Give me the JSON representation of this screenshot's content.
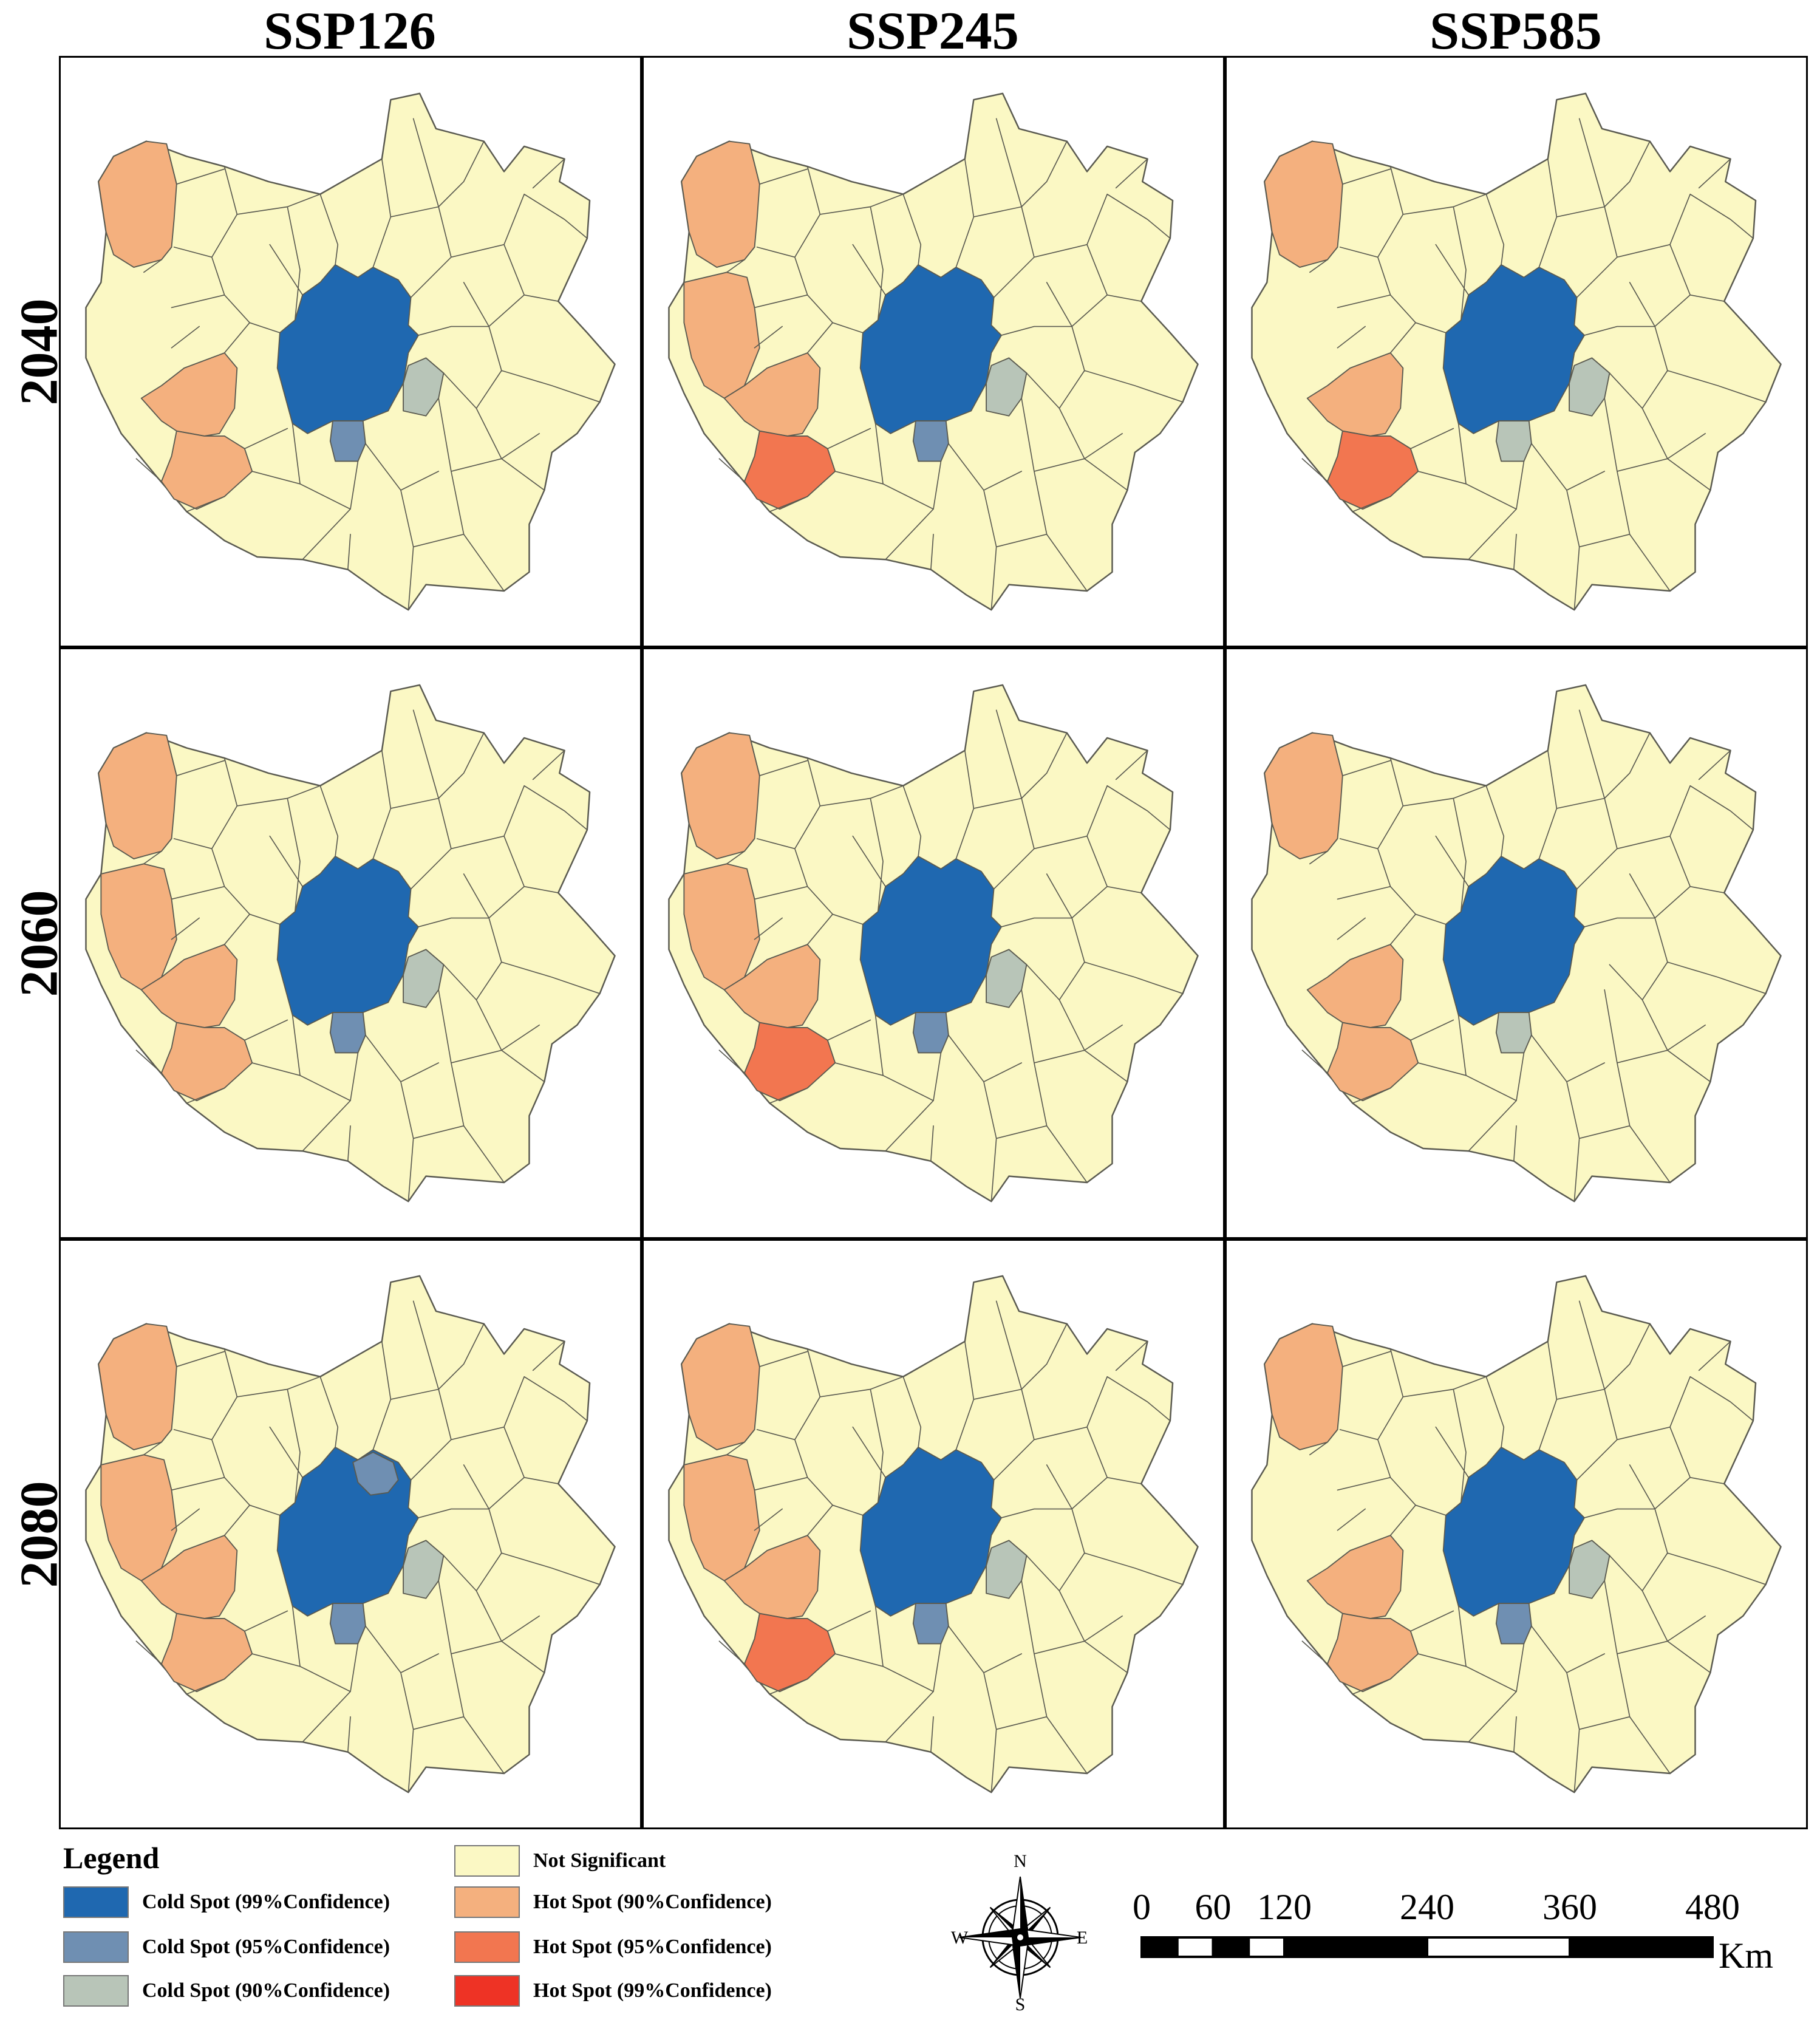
{
  "columns": [
    "SSP126",
    "SSP245",
    "SSP585"
  ],
  "rows": [
    "2040",
    "2060",
    "2080"
  ],
  "categories": {
    "cold99": {
      "label": "Cold Spot (99%Confidence)",
      "color": "#1f68b0"
    },
    "cold95": {
      "label": "Cold Spot (95%Confidence)",
      "color": "#6f8fb2"
    },
    "cold90": {
      "label": "Cold Spot (90%Confidence)",
      "color": "#b8c5b8"
    },
    "ns": {
      "label": "Not Significant",
      "color": "#fbf8c4"
    },
    "hot90": {
      "label": "Hot Spot (90%Confidence)",
      "color": "#f4b07e"
    },
    "hot95": {
      "label": "Hot Spot (95%Confidence)",
      "color": "#f27650"
    },
    "hot99": {
      "label": "Hot Spot (99%Confidence)",
      "color": "#ee3325"
    }
  },
  "legend": {
    "title": "Legend",
    "order": [
      "cold99",
      "cold95",
      "cold90",
      "ns",
      "hot90",
      "hot95",
      "hot99"
    ]
  },
  "compass": {
    "n": "N",
    "s": "S",
    "e": "E",
    "w": "W"
  },
  "scale": {
    "ticks": [
      "0",
      "60",
      "120",
      "240",
      "360",
      "480"
    ],
    "unit": "Km"
  },
  "maps": {
    "2040": {
      "SSP126": {
        "nw": "hot90",
        "wcw": "ns",
        "wc": "hot90",
        "sw": "hot90",
        "ctr": "cold99",
        "east": "cold90",
        "south": "cold95"
      },
      "SSP245": {
        "nw": "hot90",
        "wcw": "hot90",
        "wc": "hot90",
        "sw": "hot95",
        "ctr": "cold99",
        "east": "cold90",
        "south": "cold95"
      },
      "SSP585": {
        "nw": "hot90",
        "wcw": "ns",
        "wc": "hot90",
        "sw": "hot95",
        "ctr": "cold99",
        "east": "cold90",
        "south": "cold90"
      }
    },
    "2060": {
      "SSP126": {
        "nw": "hot90",
        "wcw": "hot90",
        "wc": "hot90",
        "sw": "hot90",
        "ctr": "cold99",
        "east": "cold90",
        "south": "cold95"
      },
      "SSP245": {
        "nw": "hot90",
        "wcw": "hot90",
        "wc": "hot90",
        "sw": "hot95",
        "ctr": "cold99",
        "east": "cold90",
        "south": "cold95"
      },
      "SSP585": {
        "nw": "hot90",
        "wcw": "ns",
        "wc": "hot90",
        "sw": "hot90",
        "ctr": "cold99",
        "east": "ns",
        "south": "cold90"
      }
    },
    "2080": {
      "SSP126": {
        "nw": "hot90",
        "wcw": "hot90",
        "wc": "hot90",
        "sw": "hot90",
        "ctr": "cold99",
        "east": "cold90",
        "south": "cold95",
        "ne": "cold95"
      },
      "SSP245": {
        "nw": "hot90",
        "wcw": "hot90",
        "wc": "hot90",
        "sw": "hot95",
        "ctr": "cold99",
        "east": "cold90",
        "south": "cold95"
      },
      "SSP585": {
        "nw": "hot90",
        "wcw": "ns",
        "wc": "hot90",
        "sw": "hot90",
        "ctr": "cold99",
        "east": "cold90",
        "south": "cold95"
      }
    }
  }
}
